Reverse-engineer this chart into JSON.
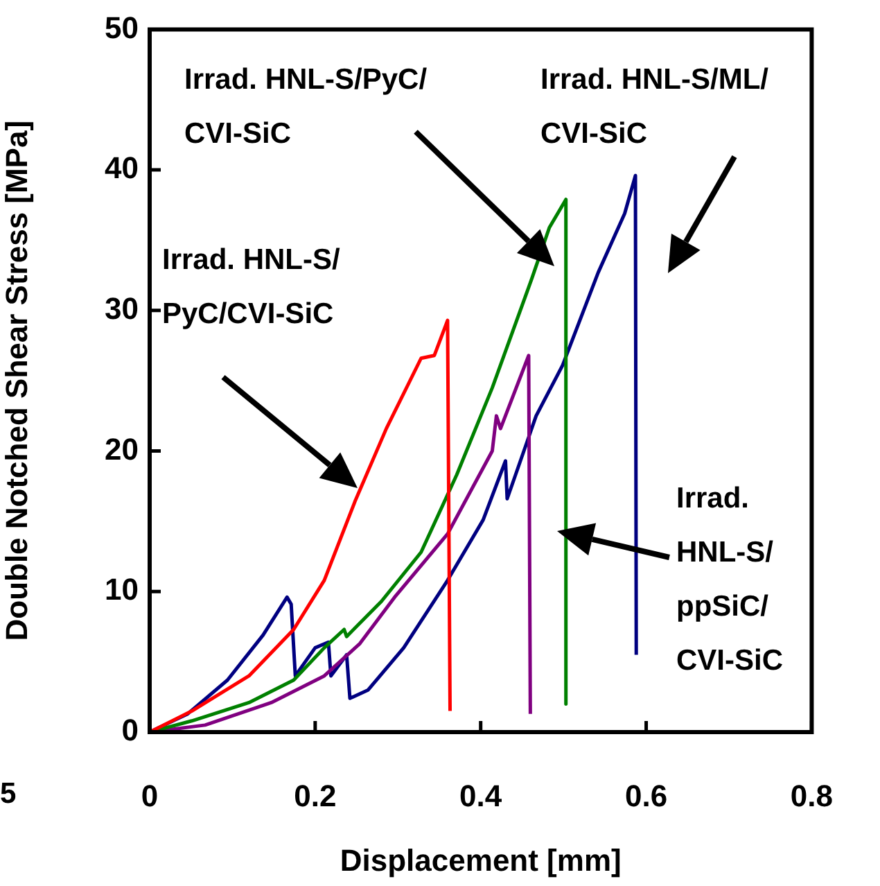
{
  "chart_data": {
    "type": "line",
    "xlabel": "Displacement [mm]",
    "ylabel": "Double Notched Shear Stress [MPa]",
    "xlim": [
      0,
      0.8
    ],
    "xticks": [
      0,
      0.2,
      0.4,
      0.6,
      0.8
    ],
    "ylim": [
      0,
      50
    ],
    "yticks": [
      0,
      10,
      20,
      30,
      40,
      50
    ],
    "grid": false,
    "legend": false,
    "marker": "none",
    "line_style": "solid",
    "annotations": [
      "Irrad. HNL-S/PyC/\nCVI-SiC",
      "Irrad. HNL-S/ML/\nCVI-SiC",
      "Irrad. HNL-S/\nPyC/CVI-SiC",
      "Irrad.\nHNL-S/\nppSiC/\nCVI-SiC",
      "5"
    ],
    "series": [
      {
        "color": "#ff0000",
        "x": [
          0,
          0.051,
          0.12,
          0.174,
          0.211,
          0.248,
          0.286,
          0.328,
          0.344,
          0.36,
          0.363
        ],
        "values": [
          0,
          1.5,
          4.0,
          7.3,
          10.8,
          16.4,
          21.6,
          26.6,
          26.8,
          29.3,
          1.5
        ]
      },
      {
        "color": "#008000",
        "x": [
          0,
          0.051,
          0.12,
          0.174,
          0.211,
          0.235,
          0.238,
          0.28,
          0.328,
          0.371,
          0.414,
          0.462,
          0.483,
          0.503,
          0.503
        ],
        "values": [
          0,
          0.8,
          2.1,
          3.7,
          6.0,
          7.3,
          6.8,
          9.3,
          12.8,
          18.3,
          24.5,
          32.3,
          35.9,
          37.9,
          2.0
        ]
      },
      {
        "color": "#800080",
        "x": [
          0,
          0.067,
          0.147,
          0.211,
          0.254,
          0.296,
          0.36,
          0.414,
          0.419,
          0.424,
          0.458,
          0.46
        ],
        "values": [
          0,
          0.5,
          2.1,
          4.0,
          6.3,
          9.6,
          14.1,
          20.0,
          22.5,
          21.6,
          26.8,
          1.3
        ]
      },
      {
        "color": "#000080",
        "x": [
          0,
          0.046,
          0.094,
          0.137,
          0.166,
          0.171,
          0.176,
          0.2,
          0.216,
          0.219,
          0.238,
          0.242,
          0.264,
          0.307,
          0.36,
          0.403,
          0.43,
          0.432,
          0.467,
          0.499,
          0.542,
          0.574,
          0.587,
          0.588
        ],
        "values": [
          0,
          1.3,
          3.7,
          6.9,
          9.6,
          9.1,
          4.0,
          6.0,
          6.4,
          4.0,
          5.5,
          2.4,
          3.0,
          6.0,
          10.8,
          15.1,
          19.3,
          16.6,
          22.5,
          26.1,
          32.7,
          36.9,
          39.6,
          5.5
        ]
      }
    ]
  }
}
